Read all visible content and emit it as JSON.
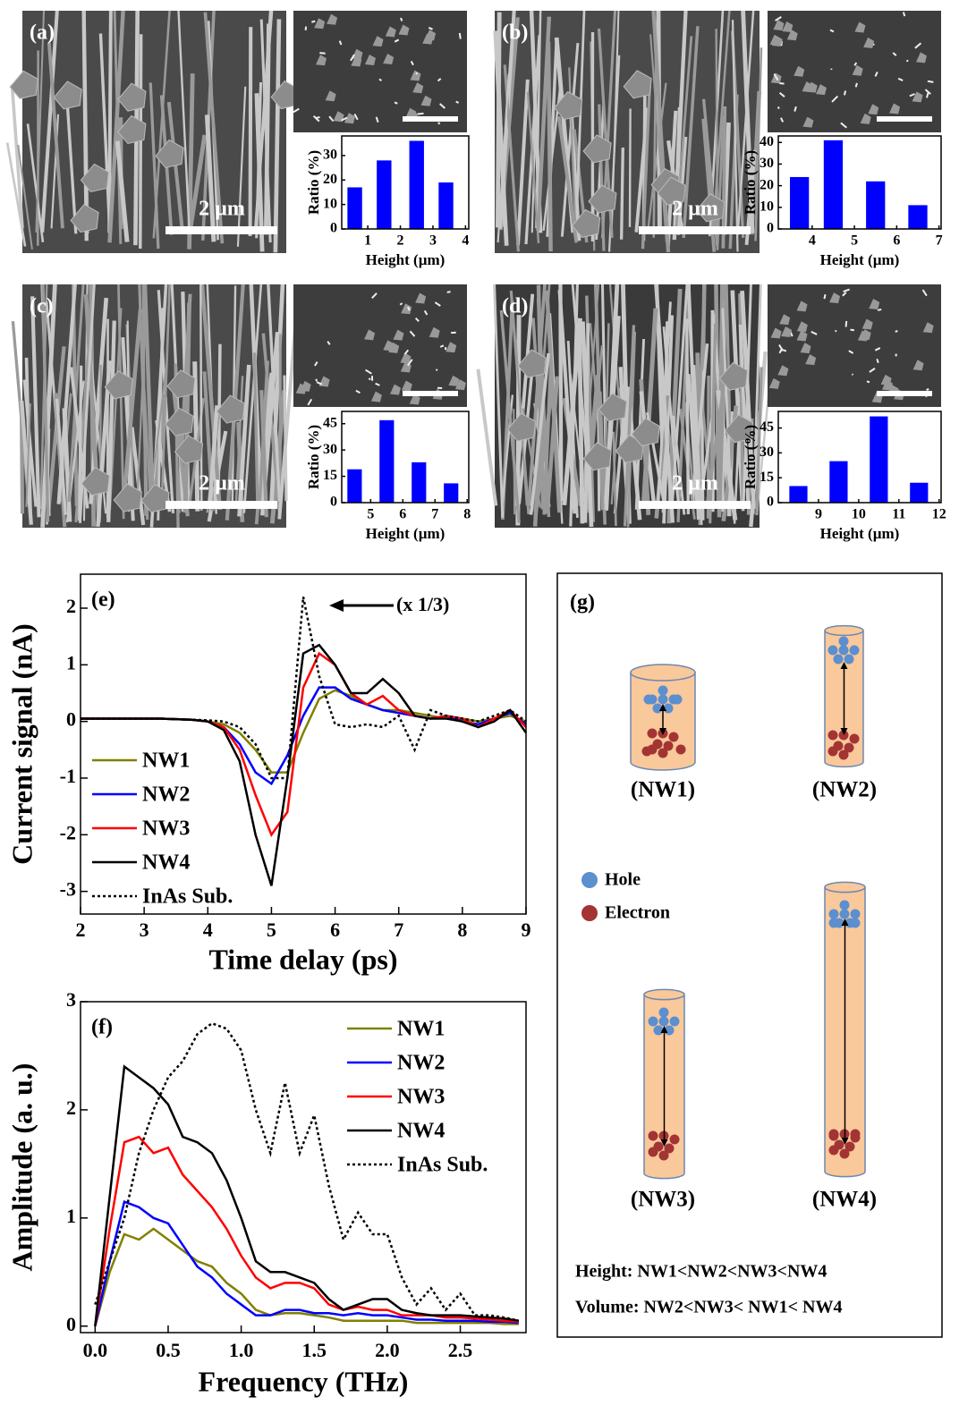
{
  "panels": [
    {
      "label": "(a)",
      "scale": "2 µm"
    },
    {
      "label": "(b)",
      "scale": "2 µm"
    },
    {
      "label": "(c)",
      "scale": "2 µm"
    },
    {
      "label": "(d)",
      "scale": "2 µm"
    }
  ],
  "chart_data": [
    {
      "type": "bar",
      "x_label": "Height (µm)",
      "y_label": "Ratio (%)",
      "color": "#0000ff",
      "x": [
        0.6,
        1.5,
        2.5,
        3.4
      ],
      "values": [
        17,
        28,
        36,
        19
      ],
      "xlim": [
        0.2,
        4.1
      ],
      "xticks": [
        1,
        2,
        3,
        4
      ],
      "ylim": [
        0,
        38
      ],
      "yticks": [
        0,
        10,
        20,
        30
      ]
    },
    {
      "type": "bar",
      "x_label": "Height (µm)",
      "y_label": "Ratio (%)",
      "color": "#0000ff",
      "x": [
        3.7,
        4.5,
        5.5,
        6.5
      ],
      "values": [
        24,
        41,
        22,
        11
      ],
      "xlim": [
        3.2,
        7.05
      ],
      "xticks": [
        4,
        5,
        6,
        7
      ],
      "ylim": [
        0,
        43
      ],
      "yticks": [
        0,
        10,
        20,
        30,
        40
      ]
    },
    {
      "type": "bar",
      "x_label": "Height (µm)",
      "y_label": "Ratio (%)",
      "color": "#0000ff",
      "x": [
        4.5,
        5.5,
        6.5,
        7.5
      ],
      "values": [
        19,
        47,
        23,
        11
      ],
      "xlim": [
        4.1,
        8.05
      ],
      "xticks": [
        5,
        6,
        7,
        8
      ],
      "ylim": [
        0,
        52
      ],
      "yticks": [
        0,
        15,
        30,
        45
      ]
    },
    {
      "type": "bar",
      "x_label": "Height (µm)",
      "y_label": "Ratio (%)",
      "color": "#0000ff",
      "x": [
        8.5,
        9.5,
        10.5,
        11.5
      ],
      "values": [
        10,
        25,
        52,
        12
      ],
      "xlim": [
        8.0,
        12.05
      ],
      "xticks": [
        9,
        10,
        11,
        12
      ],
      "ylim": [
        0,
        55
      ],
      "yticks": [
        0,
        15,
        30,
        45
      ]
    },
    {
      "type": "line",
      "label": "(e)",
      "x_label": "Time delay (ps)",
      "y_label": "Current signal (nA)",
      "annotation": "(x 1/3)",
      "legend": "lower left",
      "xlim": [
        2,
        9
      ],
      "xticks": [
        2,
        3,
        4,
        5,
        6,
        7,
        8,
        9
      ],
      "ylim": [
        -3.4,
        2.6
      ],
      "yticks": [
        -3,
        -2,
        -1,
        0,
        1,
        2
      ],
      "x": [
        2,
        2.25,
        2.5,
        2.75,
        3,
        3.25,
        3.5,
        3.75,
        4,
        4.25,
        4.5,
        4.75,
        5,
        5.25,
        5.5,
        5.75,
        6,
        6.25,
        6.5,
        6.75,
        7,
        7.25,
        7.5,
        7.75,
        8,
        8.25,
        8.5,
        8.75,
        9
      ],
      "series": [
        {
          "name": "NW1",
          "color": "#808000",
          "style": "solid",
          "values": [
            0.05,
            0.05,
            0.05,
            0.05,
            0.05,
            0.05,
            0.04,
            0.03,
            0.0,
            -0.05,
            -0.2,
            -0.5,
            -0.9,
            -0.9,
            -0.2,
            0.4,
            0.55,
            0.45,
            0.3,
            0.2,
            0.2,
            0.15,
            0.1,
            0.05,
            0.05,
            0.0,
            0.05,
            0.1,
            0.0
          ]
        },
        {
          "name": "NW2",
          "color": "#0000ff",
          "style": "solid",
          "values": [
            0.05,
            0.05,
            0.05,
            0.05,
            0.05,
            0.05,
            0.04,
            0.03,
            0.0,
            -0.1,
            -0.4,
            -0.9,
            -1.1,
            -0.6,
            0.1,
            0.6,
            0.6,
            0.4,
            0.3,
            0.2,
            0.15,
            0.1,
            0.05,
            0.1,
            0.0,
            -0.05,
            0.05,
            0.15,
            -0.05
          ]
        },
        {
          "name": "NW3",
          "color": "#ff0000",
          "style": "solid",
          "values": [
            0.05,
            0.05,
            0.05,
            0.05,
            0.05,
            0.05,
            0.04,
            0.03,
            0.0,
            -0.1,
            -0.5,
            -1.3,
            -2.0,
            -1.6,
            0.6,
            1.2,
            1.0,
            0.5,
            0.3,
            0.45,
            0.2,
            0.1,
            0.05,
            0.1,
            0.05,
            -0.1,
            0.05,
            0.2,
            -0.1
          ]
        },
        {
          "name": "NW4",
          "color": "#000000",
          "style": "solid",
          "values": [
            0.05,
            0.05,
            0.05,
            0.05,
            0.05,
            0.05,
            0.04,
            0.03,
            0.0,
            -0.15,
            -0.7,
            -2.0,
            -2.9,
            -1.0,
            1.2,
            1.35,
            1.0,
            0.5,
            0.5,
            0.75,
            0.5,
            0.1,
            0.05,
            0.05,
            0.0,
            -0.1,
            0.0,
            0.2,
            -0.2
          ]
        },
        {
          "name": "InAs Sub.",
          "color": "#000000",
          "style": "dotted",
          "values": [
            0.05,
            0.05,
            0.05,
            0.05,
            0.05,
            0.05,
            0.04,
            0.03,
            0.02,
            0.0,
            -0.1,
            -0.4,
            -1.0,
            -1.0,
            2.2,
            0.8,
            -0.05,
            -0.1,
            -0.05,
            -0.1,
            0.1,
            -0.5,
            0.2,
            0.1,
            0.05,
            0.0,
            0.1,
            0.2,
            0.0
          ]
        }
      ]
    },
    {
      "type": "line",
      "label": "(f)",
      "x_label": "Frequency (THz)",
      "y_label": "Amplitude (a. u.)",
      "legend": "upper right",
      "xlim": [
        -0.1,
        2.95
      ],
      "xticks": [
        {
          "value": 0,
          "label": "0.0"
        },
        0.5,
        {
          "value": 1,
          "label": "1.0"
        },
        1.5,
        {
          "value": 2,
          "label": "2.0"
        },
        2.5
      ],
      "ylim": [
        -0.06,
        3
      ],
      "yticks": [
        0,
        1,
        2,
        3
      ],
      "x": [
        0,
        0.1,
        0.2,
        0.3,
        0.4,
        0.5,
        0.6,
        0.7,
        0.8,
        0.9,
        1.0,
        1.1,
        1.2,
        1.3,
        1.4,
        1.5,
        1.6,
        1.7,
        1.8,
        1.9,
        2.0,
        2.1,
        2.2,
        2.3,
        2.4,
        2.5,
        2.6,
        2.7,
        2.8,
        2.9
      ],
      "series": [
        {
          "name": "NW1",
          "color": "#808000",
          "style": "solid",
          "values": [
            0,
            0.5,
            0.85,
            0.8,
            0.9,
            0.8,
            0.7,
            0.6,
            0.55,
            0.4,
            0.3,
            0.15,
            0.1,
            0.12,
            0.12,
            0.1,
            0.08,
            0.05,
            0.05,
            0.05,
            0.05,
            0.05,
            0.03,
            0.03,
            0.03,
            0.03,
            0.03,
            0.03,
            0.02,
            0.02
          ]
        },
        {
          "name": "NW2",
          "color": "#0000ff",
          "style": "solid",
          "values": [
            0,
            0.6,
            1.15,
            1.1,
            1.0,
            0.95,
            0.75,
            0.55,
            0.45,
            0.3,
            0.2,
            0.1,
            0.1,
            0.15,
            0.15,
            0.12,
            0.12,
            0.1,
            0.12,
            0.1,
            0.1,
            0.08,
            0.06,
            0.06,
            0.05,
            0.05,
            0.05,
            0.04,
            0.04,
            0.03
          ]
        },
        {
          "name": "NW3",
          "color": "#ff0000",
          "style": "solid",
          "values": [
            0,
            0.9,
            1.7,
            1.75,
            1.6,
            1.65,
            1.4,
            1.25,
            1.1,
            0.9,
            0.65,
            0.45,
            0.35,
            0.4,
            0.4,
            0.35,
            0.2,
            0.15,
            0.18,
            0.15,
            0.15,
            0.1,
            0.1,
            0.1,
            0.08,
            0.08,
            0.07,
            0.06,
            0.05,
            0.04
          ]
        },
        {
          "name": "NW4",
          "color": "#000000",
          "style": "solid",
          "values": [
            0,
            1.2,
            2.4,
            2.3,
            2.2,
            2.05,
            1.75,
            1.7,
            1.6,
            1.35,
            1.0,
            0.6,
            0.5,
            0.5,
            0.45,
            0.4,
            0.25,
            0.15,
            0.2,
            0.25,
            0.25,
            0.15,
            0.12,
            0.1,
            0.1,
            0.1,
            0.09,
            0.08,
            0.07,
            0.05
          ]
        },
        {
          "name": "InAs Sub.",
          "color": "#000000",
          "style": "dotted",
          "values": [
            0.2,
            0.6,
            1.0,
            1.6,
            2.0,
            2.3,
            2.45,
            2.7,
            2.8,
            2.75,
            2.55,
            2.0,
            1.6,
            2.25,
            1.6,
            1.95,
            1.3,
            0.8,
            1.05,
            0.85,
            0.85,
            0.45,
            0.2,
            0.35,
            0.15,
            0.3,
            0.1,
            0.1,
            0.08,
            0.05
          ]
        }
      ]
    }
  ],
  "diagram": {
    "label": "(g)",
    "nodes": [
      "(NW1)",
      "(NW2)",
      "(NW3)",
      "(NW4)"
    ],
    "legend": [
      "Hole",
      "Electron"
    ],
    "notes": [
      "Height: NW1<NW2<NW3<NW4",
      "Volume: NW2<NW3< NW1< NW4"
    ]
  }
}
